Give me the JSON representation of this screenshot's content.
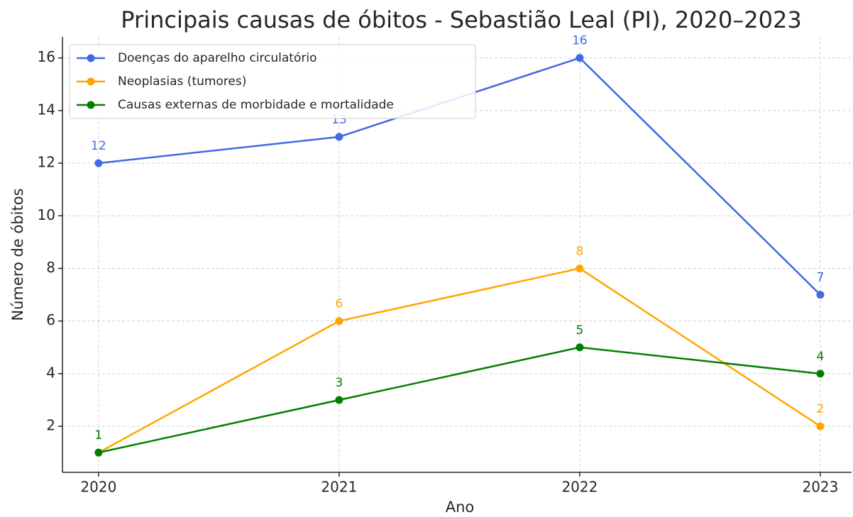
{
  "chart_data": {
    "type": "line",
    "title": "Principais causas de óbitos - Sebastião Leal (PI), 2020–2023",
    "x_label": "Ano",
    "y_label": "Número de óbitos",
    "x": [
      2020,
      2021,
      2022,
      2023
    ],
    "series": [
      {
        "name": "Doenças do aparelho circulatório",
        "color": "#4169e1",
        "values": [
          12,
          13,
          16,
          7
        ]
      },
      {
        "name": "Neoplasias (tumores)",
        "color": "#ffa500",
        "values": [
          1,
          6,
          8,
          2
        ]
      },
      {
        "name": "Causas externas de morbidade e mortalidade",
        "color": "#008000",
        "values": [
          1,
          3,
          5,
          4
        ]
      }
    ],
    "xlim": [
      2019.85,
      2023.13
    ],
    "xticks": [
      2020,
      2021,
      2022,
      2023
    ],
    "ylim": [
      0.25,
      16.8
    ],
    "yticks": [
      2,
      4,
      6,
      8,
      10,
      12,
      14,
      16
    ],
    "grid": true,
    "legend": "upper left",
    "data_labels": true
  }
}
